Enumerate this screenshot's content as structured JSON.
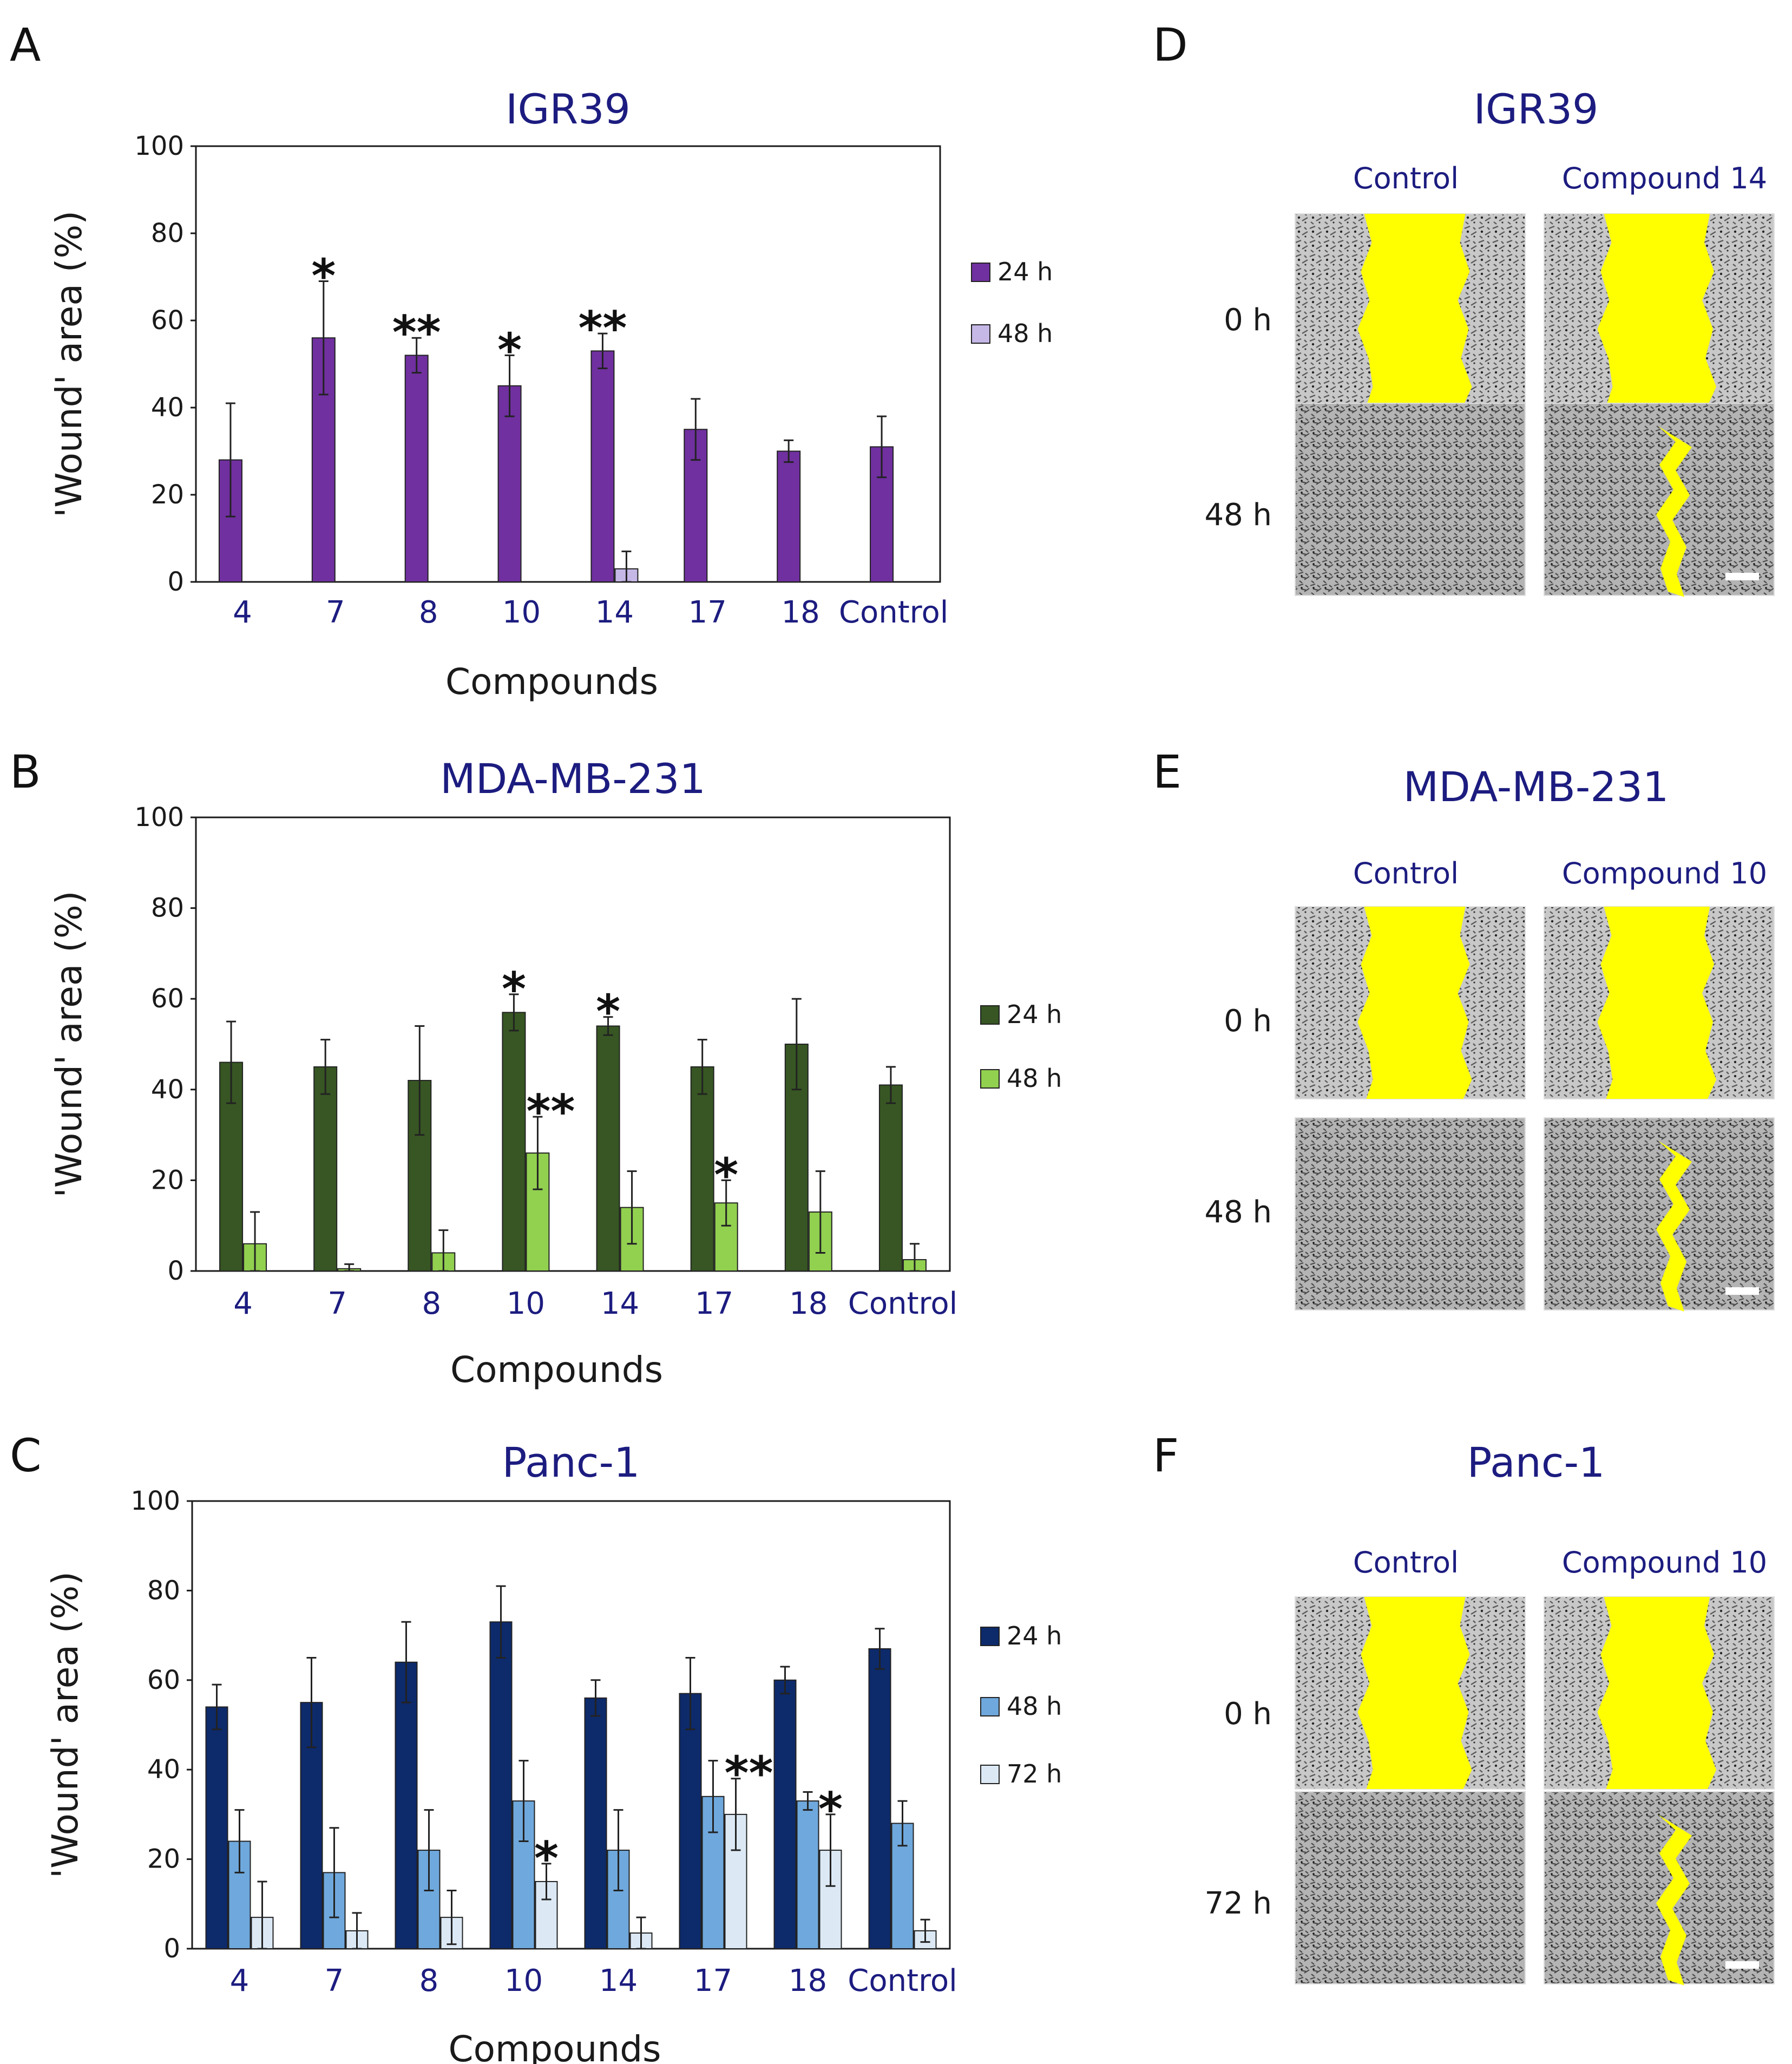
{
  "chart_data": [
    {
      "panel": "A",
      "type": "bar",
      "title": "IGR39",
      "xlabel": "Compounds",
      "ylabel": "'Wound' area (%)",
      "ylim": [
        0,
        100
      ],
      "yticks": [
        "0",
        "20",
        "40",
        "60",
        "80",
        "100"
      ],
      "categories": [
        "4",
        "7",
        "8",
        "10",
        "14",
        "17",
        "18",
        "Control"
      ],
      "legend_position": "right",
      "series": [
        {
          "name": "24 h",
          "color": "#7030a0",
          "values": [
            28,
            56,
            52,
            45,
            53,
            35,
            30,
            31
          ],
          "errors": [
            13,
            13,
            4,
            7,
            4,
            7,
            2.5,
            7
          ]
        },
        {
          "name": "48 h",
          "color": "#c5b7e6",
          "values": [
            0,
            0,
            0,
            0,
            3,
            0,
            0,
            0
          ],
          "errors": [
            0,
            0,
            0,
            0,
            4,
            0,
            0,
            0
          ]
        }
      ],
      "annotations": [
        {
          "category": "7",
          "text": "*"
        },
        {
          "category": "8",
          "text": "**"
        },
        {
          "category": "10",
          "text": "*"
        },
        {
          "category": "14",
          "text": "**"
        }
      ]
    },
    {
      "panel": "B",
      "type": "bar",
      "title": "MDA-MB-231",
      "xlabel": "Compounds",
      "ylabel": "'Wound' area (%)",
      "ylim": [
        0,
        100
      ],
      "yticks": [
        "0",
        "20",
        "40",
        "60",
        "80",
        "100"
      ],
      "categories": [
        "4",
        "7",
        "8",
        "10",
        "14",
        "17",
        "18",
        "Control"
      ],
      "legend_position": "right",
      "series": [
        {
          "name": "24 h",
          "color": "#375623",
          "values": [
            46,
            45,
            42,
            57,
            54,
            45,
            50,
            41
          ],
          "errors": [
            9,
            6,
            12,
            4,
            2,
            6,
            10,
            4
          ]
        },
        {
          "name": "48 h",
          "color": "#92d050",
          "values": [
            6,
            0.5,
            4,
            26,
            14,
            15,
            13,
            2.5
          ],
          "errors": [
            7,
            1,
            5,
            8,
            8,
            5,
            9,
            3.5
          ]
        }
      ],
      "annotations": [
        {
          "category": "10",
          "series": "24 h",
          "text": "*"
        },
        {
          "category": "10",
          "series": "48 h",
          "text": "**"
        },
        {
          "category": "14",
          "series": "24 h",
          "text": "*"
        },
        {
          "category": "17",
          "series": "48 h",
          "text": "*"
        }
      ]
    },
    {
      "panel": "C",
      "type": "bar",
      "title": "Panc-1",
      "xlabel": "Compounds",
      "ylabel": "'Wound' area (%)",
      "ylim": [
        0,
        100
      ],
      "yticks": [
        "0",
        "20",
        "40",
        "60",
        "80",
        "100"
      ],
      "categories": [
        "4",
        "7",
        "8",
        "10",
        "14",
        "17",
        "18",
        "Control"
      ],
      "legend_position": "right",
      "series": [
        {
          "name": "24 h",
          "color": "#0d2a6b",
          "values": [
            54,
            55,
            64,
            73,
            56,
            57,
            60,
            67
          ],
          "errors": [
            5,
            10,
            9,
            8,
            4,
            8,
            3,
            4.5
          ]
        },
        {
          "name": "48 h",
          "color": "#6fa8dc",
          "values": [
            24,
            17,
            22,
            33,
            22,
            34,
            33,
            28
          ],
          "errors": [
            7,
            10,
            9,
            9,
            9,
            8,
            2,
            5
          ]
        },
        {
          "name": "72 h",
          "color": "#dce9f5",
          "values": [
            7,
            4,
            7,
            15,
            3.5,
            30,
            22,
            4
          ],
          "errors": [
            8,
            4,
            6,
            4,
            3.5,
            8,
            8,
            2.5
          ]
        }
      ],
      "annotations": [
        {
          "category": "10",
          "series": "72 h",
          "text": "*"
        },
        {
          "category": "17",
          "series": "72 h",
          "text": "**"
        },
        {
          "category": "18",
          "series": "72 h",
          "text": "*"
        }
      ]
    }
  ],
  "images": [
    {
      "panel": "D",
      "title": "IGR39",
      "columns": [
        "Control",
        "Compound 14"
      ],
      "rows": [
        "0 h",
        "48 h"
      ]
    },
    {
      "panel": "E",
      "title": "MDA-MB-231",
      "columns": [
        "Control",
        "Compound 10"
      ],
      "rows": [
        "0 h",
        "48 h"
      ]
    },
    {
      "panel": "F",
      "title": "Panc-1",
      "columns": [
        "Control",
        "Compound 10"
      ],
      "rows": [
        "0 h",
        "72 h"
      ]
    }
  ],
  "colors": {
    "wound_highlight": "#ffff00",
    "micrograph_gray": "#c9c9c9",
    "scale_bar": "#ffffff"
  }
}
